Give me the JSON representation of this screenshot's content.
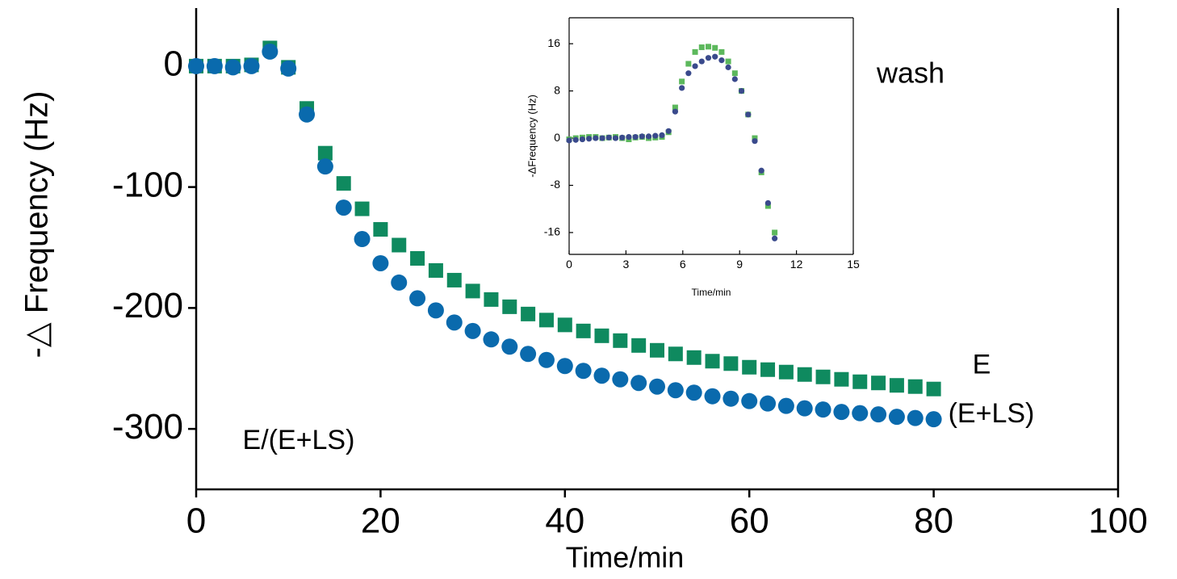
{
  "chart_data": [
    {
      "type": "scatter",
      "x_label": "Time/min",
      "y_label": "-△ Frequency (Hz)",
      "xlim": [
        0,
        100
      ],
      "xticks": [
        0,
        20,
        40,
        60,
        80,
        100
      ],
      "ylim": [
        -350,
        48
      ],
      "yticks": [
        0,
        -100,
        -200,
        -300
      ],
      "annotations": [
        "wash",
        "E/(E+LS)"
      ],
      "x": [
        0,
        2,
        4,
        6,
        8,
        10,
        12,
        14,
        16,
        18,
        20,
        22,
        24,
        26,
        28,
        30,
        32,
        34,
        36,
        38,
        40,
        42,
        44,
        46,
        48,
        50,
        52,
        54,
        56,
        58,
        60,
        62,
        64,
        66,
        68,
        70,
        72,
        74,
        76,
        78,
        80
      ],
      "series": [
        {
          "name": "E",
          "color": "#0f8a5f",
          "marker": "square",
          "values": [
            0,
            0,
            0,
            1,
            15,
            -1,
            -35,
            -72,
            -97,
            -118,
            -135,
            -148,
            -159,
            -169,
            -177,
            -186,
            -193,
            -199,
            -205,
            -210,
            -214,
            -219,
            -223,
            -227,
            -231,
            -235,
            -238,
            -241,
            -244,
            -246,
            -249,
            -251,
            -253,
            -255,
            -257,
            -259,
            -261,
            -262,
            -264,
            -265,
            -267
          ]
        },
        {
          "name": "(E+LS)",
          "color": "#0a6aad",
          "marker": "circle",
          "values": [
            0,
            0,
            -1,
            0,
            12,
            -2,
            -40,
            -83,
            -117,
            -143,
            -163,
            -179,
            -192,
            -202,
            -212,
            -219,
            -226,
            -232,
            -238,
            -243,
            -248,
            -252,
            -256,
            -259,
            -262,
            -265,
            -268,
            -270,
            -273,
            -275,
            -277,
            -279,
            -281,
            -283,
            -284,
            -286,
            -287,
            -288,
            -290,
            -291,
            -292
          ]
        }
      ]
    },
    {
      "type": "scatter",
      "x_label": "Time/min",
      "y_label": "-ΔFrequency (Hz)",
      "xlim": [
        0,
        15
      ],
      "xticks": [
        0,
        3,
        6,
        9,
        12,
        15
      ],
      "ylim": [
        -19.7,
        20.4
      ],
      "yticks": [
        -16,
        -8,
        0,
        8,
        16
      ],
      "x": [
        0,
        0.35,
        0.7,
        1.05,
        1.4,
        1.75,
        2.1,
        2.45,
        2.8,
        3.15,
        3.5,
        3.85,
        4.2,
        4.55,
        4.9,
        5.25,
        5.6,
        5.95,
        6.3,
        6.65,
        7,
        7.35,
        7.7,
        8.05,
        8.4,
        8.75,
        9.1,
        9.45,
        9.8,
        10.15,
        10.5,
        10.85
      ],
      "series": [
        {
          "color": "#5cb85c",
          "marker": "square",
          "values": [
            -0.2,
            0,
            0.1,
            0.2,
            0.2,
            0,
            0.1,
            0.2,
            0,
            -0.2,
            0.1,
            0.2,
            0,
            0.1,
            0.2,
            1.0,
            5.2,
            9.6,
            12.6,
            14.6,
            15.4,
            15.5,
            15.3,
            14.6,
            13,
            11,
            8,
            4,
            0,
            -5.8,
            -11.5,
            -16
          ]
        },
        {
          "color": "#3a4a8c",
          "marker": "circle",
          "values": [
            -0.4,
            -0.3,
            -0.2,
            -0.1,
            0,
            0,
            0.1,
            0,
            0.1,
            0.2,
            0.2,
            0.3,
            0.3,
            0.4,
            0.5,
            1.2,
            4.5,
            8.5,
            11,
            12.2,
            13,
            13.6,
            13.8,
            13.2,
            12,
            10,
            8,
            4,
            -0.5,
            -5.5,
            -11,
            -17
          ]
        }
      ]
    }
  ]
}
